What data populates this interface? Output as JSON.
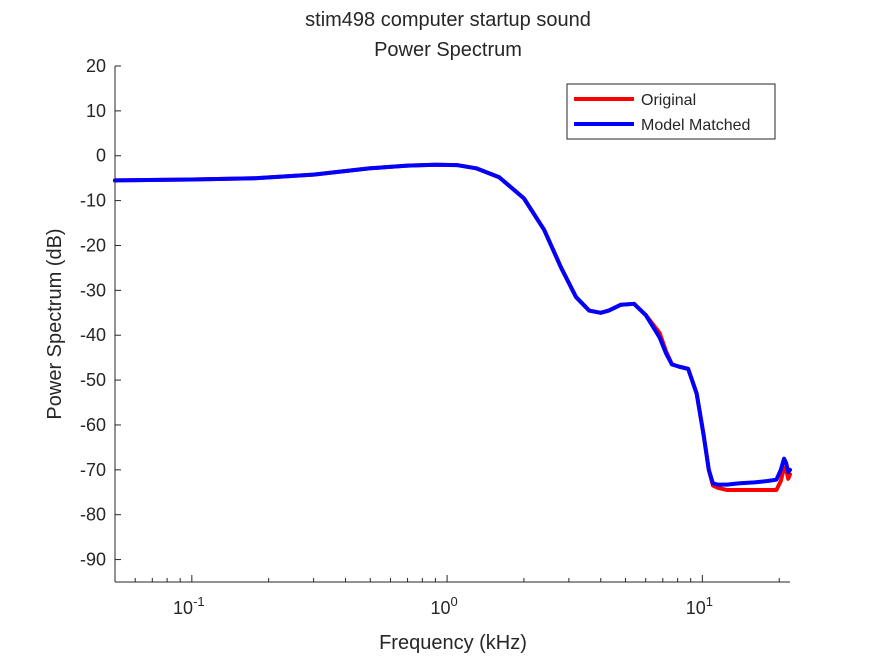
{
  "chart_data": {
    "type": "line",
    "title": "stim498 computer startup sound",
    "subtitle": "Power Spectrum",
    "xlabel": "Frequency (kHz)",
    "ylabel": "Power Spectrum (dB)",
    "xscale": "log",
    "xlim": [
      0.05,
      22.05
    ],
    "ylim": [
      -95,
      20
    ],
    "x_ticks": [
      {
        "value": 0.1,
        "base": "10",
        "exp": "-1"
      },
      {
        "value": 1,
        "base": "10",
        "exp": "0"
      },
      {
        "value": 10,
        "base": "10",
        "exp": "1"
      }
    ],
    "y_ticks": [
      20,
      10,
      0,
      -10,
      -20,
      -30,
      -40,
      -50,
      -60,
      -70,
      -80,
      -90
    ],
    "y_tick_labels": [
      "20",
      "10",
      "0",
      "-10",
      "-20",
      "-30",
      "-40",
      "-50",
      "-60",
      "-70",
      "-80",
      "-90"
    ],
    "grid": false,
    "legend_position": "top-right",
    "series": [
      {
        "name": "Original",
        "color": "#ff0000",
        "x": [
          0.05,
          0.1,
          0.18,
          0.3,
          0.5,
          0.7,
          0.9,
          1.1,
          1.3,
          1.6,
          2.0,
          2.4,
          2.8,
          3.2,
          3.6,
          4.0,
          4.3,
          4.8,
          5.4,
          6.0,
          6.8,
          7.2,
          7.6,
          8.1,
          8.8,
          9.5,
          10.1,
          10.6,
          11.0,
          11.5,
          12.5,
          14.0,
          16.0,
          18.0,
          19.5,
          20.3,
          20.9,
          21.3,
          21.7,
          22.05
        ],
        "values": [
          -5.5,
          -5.3,
          -5.0,
          -4.2,
          -2.8,
          -2.2,
          -2.0,
          -2.1,
          -2.8,
          -4.8,
          -9.5,
          -16.5,
          -25.0,
          -31.5,
          -34.5,
          -35.0,
          -34.5,
          -33.2,
          -33.0,
          -35.5,
          -39.5,
          -43.5,
          -46.5,
          -47.0,
          -47.5,
          -53.0,
          -62.0,
          -70.0,
          -73.5,
          -74.0,
          -74.5,
          -74.5,
          -74.5,
          -74.5,
          -74.5,
          -72.5,
          -69.5,
          -70.0,
          -72.0,
          -71.0
        ]
      },
      {
        "name": "Model Matched",
        "color": "#0000ff",
        "x": [
          0.05,
          0.1,
          0.18,
          0.3,
          0.5,
          0.7,
          0.9,
          1.1,
          1.3,
          1.6,
          2.0,
          2.4,
          2.8,
          3.2,
          3.6,
          4.0,
          4.3,
          4.8,
          5.4,
          6.0,
          6.8,
          7.2,
          7.6,
          8.1,
          8.8,
          9.5,
          10.1,
          10.6,
          11.0,
          11.5,
          12.5,
          14.0,
          16.0,
          18.0,
          19.5,
          20.3,
          20.9,
          21.3,
          21.7,
          22.05
        ],
        "values": [
          -5.5,
          -5.3,
          -5.0,
          -4.2,
          -2.8,
          -2.2,
          -2.0,
          -2.1,
          -2.8,
          -4.8,
          -9.5,
          -16.5,
          -25.0,
          -31.5,
          -34.5,
          -35.0,
          -34.5,
          -33.2,
          -33.0,
          -35.5,
          -40.5,
          -44.0,
          -46.5,
          -47.0,
          -47.5,
          -53.0,
          -62.0,
          -70.0,
          -73.0,
          -73.3,
          -73.3,
          -73.0,
          -72.8,
          -72.5,
          -72.2,
          -70.0,
          -67.5,
          -68.5,
          -70.5,
          -70.0
        ]
      }
    ]
  }
}
